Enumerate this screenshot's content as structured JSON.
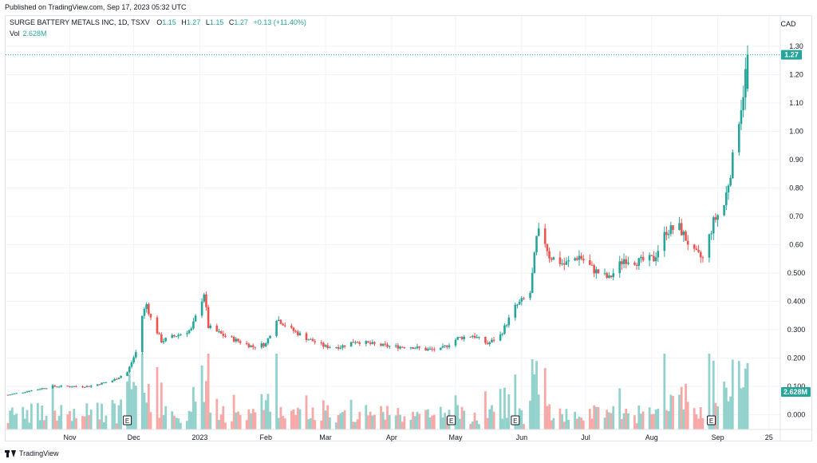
{
  "published": "Published on TradingView.com, Sep 17, 2023 05:32 UTC",
  "brand": "TradingView",
  "legend": {
    "symbol": "SURGE BATTERY METALS INC, 1D, TSXV",
    "open_key": "O",
    "open": "1.15",
    "high_key": "H",
    "high": "1.27",
    "low_key": "L",
    "low": "1.15",
    "close_key": "C",
    "close": "1.27",
    "change": "+0.13 (+11.40%)",
    "vol_key": "Vol",
    "vol": "2.628M"
  },
  "colors": {
    "up": "#26a69a",
    "down": "#ef5350",
    "vol_up": "#93d2cc",
    "vol_down": "#f7a9a7",
    "grid": "#f0f3fa"
  },
  "chart_data": {
    "type": "candlestick",
    "currency": "CAD",
    "last_price": "1.27",
    "last_volume": "2.628M",
    "y_ticks": [
      "1.30",
      "1.20",
      "1.10",
      "1.00",
      "0.90",
      "0.80",
      "0.70",
      "0.60",
      "0.500",
      "0.400",
      "0.300",
      "0.200",
      "0.100",
      "0.000"
    ],
    "x_ticks": [
      "Nov",
      "Dec",
      "2023",
      "Feb",
      "Mar",
      "Apr",
      "May",
      "Jun",
      "Jul",
      "Aug",
      "Sep",
      "25"
    ],
    "earnings_marker": "E",
    "earnings_dates": [
      "2022-11-28",
      "2023-04-29",
      "2023-05-29",
      "2023-08-29"
    ],
    "date_range": [
      "2022-10-03",
      "2023-09-15"
    ],
    "close_anchors": [
      [
        "2022-10-03",
        0.07
      ],
      [
        "2022-10-10",
        0.08
      ],
      [
        "2022-10-17",
        0.09
      ],
      [
        "2022-10-24",
        0.1
      ],
      [
        "2022-11-01",
        0.1
      ],
      [
        "2022-11-10",
        0.1
      ],
      [
        "2022-11-21",
        0.12
      ],
      [
        "2022-11-28",
        0.15
      ],
      [
        "2022-12-02",
        0.22
      ],
      [
        "2022-12-05",
        0.35
      ],
      [
        "2022-12-07",
        0.39
      ],
      [
        "2022-12-09",
        0.34
      ],
      [
        "2022-12-14",
        0.26
      ],
      [
        "2022-12-21",
        0.28
      ],
      [
        "2022-12-28",
        0.3
      ],
      [
        "2023-01-03",
        0.43
      ],
      [
        "2023-01-05",
        0.31
      ],
      [
        "2023-01-12",
        0.28
      ],
      [
        "2023-01-19",
        0.26
      ],
      [
        "2023-01-26",
        0.24
      ],
      [
        "2023-02-01",
        0.25
      ],
      [
        "2023-02-06",
        0.34
      ],
      [
        "2023-02-13",
        0.3
      ],
      [
        "2023-02-20",
        0.27
      ],
      [
        "2023-03-01",
        0.24
      ],
      [
        "2023-03-08",
        0.24
      ],
      [
        "2023-03-15",
        0.26
      ],
      [
        "2023-03-22",
        0.25
      ],
      [
        "2023-04-01",
        0.24
      ],
      [
        "2023-04-10",
        0.24
      ],
      [
        "2023-04-17",
        0.23
      ],
      [
        "2023-04-24",
        0.23
      ],
      [
        "2023-05-02",
        0.27
      ],
      [
        "2023-05-09",
        0.28
      ],
      [
        "2023-05-16",
        0.25
      ],
      [
        "2023-05-22",
        0.28
      ],
      [
        "2023-05-29",
        0.38
      ],
      [
        "2023-06-05",
        0.43
      ],
      [
        "2023-06-08",
        0.62
      ],
      [
        "2023-06-10",
        0.66
      ],
      [
        "2023-06-14",
        0.56
      ],
      [
        "2023-06-21",
        0.53
      ],
      [
        "2023-06-28",
        0.56
      ],
      [
        "2023-07-05",
        0.51
      ],
      [
        "2023-07-12",
        0.48
      ],
      [
        "2023-07-19",
        0.55
      ],
      [
        "2023-07-26",
        0.54
      ],
      [
        "2023-08-02",
        0.55
      ],
      [
        "2023-08-08",
        0.65
      ],
      [
        "2023-08-14",
        0.66
      ],
      [
        "2023-08-21",
        0.57
      ],
      [
        "2023-08-25",
        0.55
      ],
      [
        "2023-08-30",
        0.68
      ],
      [
        "2023-09-04",
        0.74
      ],
      [
        "2023-09-06",
        0.82
      ],
      [
        "2023-09-08",
        0.9
      ],
      [
        "2023-09-11",
        1.05
      ],
      [
        "2023-09-13",
        1.14
      ],
      [
        "2023-09-15",
        1.27
      ]
    ],
    "volume_scale_M": 3.0
  }
}
